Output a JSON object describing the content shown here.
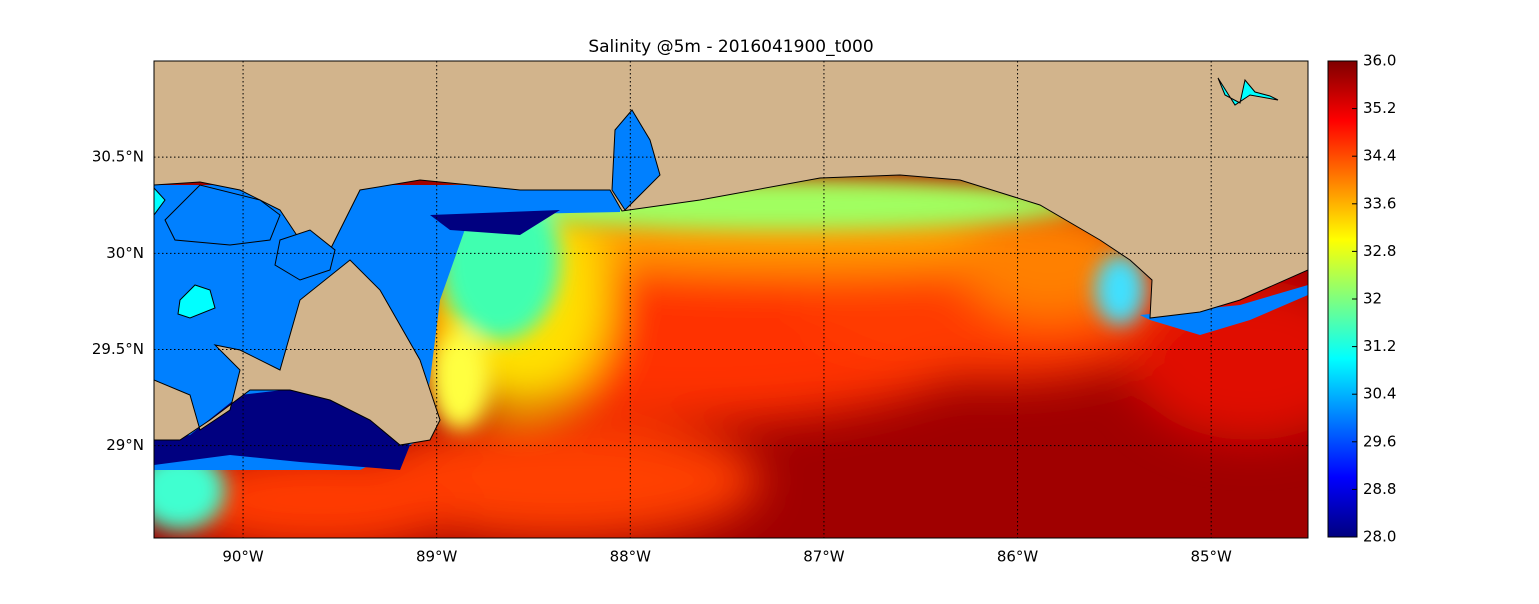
{
  "chart_data": {
    "type": "map",
    "title": "Salinity @5m - 2016041900_t000",
    "xlim": [
      -90.46,
      -84.5
    ],
    "ylim": [
      28.52,
      31.0
    ],
    "xticks": [
      {
        "value": -90,
        "label": "90°W"
      },
      {
        "value": -89,
        "label": "89°W"
      },
      {
        "value": -88,
        "label": "88°W"
      },
      {
        "value": -87,
        "label": "87°W"
      },
      {
        "value": -86,
        "label": "86°W"
      },
      {
        "value": -85,
        "label": "85°W"
      }
    ],
    "yticks": [
      {
        "value": 29,
        "label": "29°N"
      },
      {
        "value": 29.5,
        "label": "29.5°N"
      },
      {
        "value": 30,
        "label": "30°N"
      },
      {
        "value": 30.5,
        "label": "30.5°N"
      }
    ],
    "grid": true,
    "colormap": "jet",
    "colorbar_lim": [
      28.0,
      36.0
    ],
    "colorbar_ticks": [
      {
        "value": 28.0,
        "label": "28.0"
      },
      28.8,
      29.6,
      30.4,
      31.2,
      32.0,
      32.8,
      33.6,
      34.4,
      35.2,
      {
        "value": 36.0,
        "label": "36.0"
      }
    ]
  }
}
